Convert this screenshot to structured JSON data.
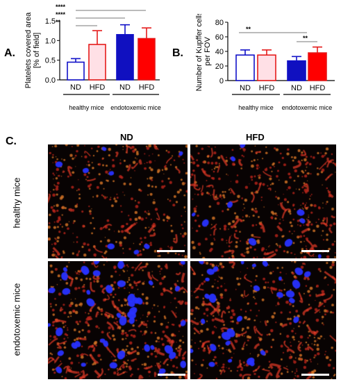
{
  "panel_labels": {
    "a": "A.",
    "b": "B.",
    "c": "C."
  },
  "colors": {
    "nd": "#1010c8",
    "hfd": "#e41a1a",
    "hfd_fill_endo": "#ff0000",
    "hfd_light": "#ffe0e6",
    "nd_endo_fill": "#1010c0",
    "micro_bg": "#080303"
  },
  "chart_data": [
    {
      "type": "bar",
      "panel": "A.",
      "ylabel": "Platelets covered area [% of field]",
      "ylim": [
        0,
        1.5
      ],
      "yticks": [
        "0.0",
        "0.5",
        "1.0",
        "1.5"
      ],
      "categories": [
        "ND",
        "HFD",
        "ND",
        "HFD"
      ],
      "groups": [
        "healthy mice",
        "endotoxemic mice"
      ],
      "values": [
        0.45,
        0.9,
        1.15,
        1.05
      ],
      "errors": [
        0.09,
        0.35,
        0.25,
        0.27
      ],
      "filled": [
        false,
        false,
        true,
        true
      ],
      "significance": [
        "****",
        "****",
        "**"
      ],
      "grid": false
    },
    {
      "type": "bar",
      "panel": "B.",
      "ylabel": "Number of Kupffer cells per FOV",
      "ylim": [
        0,
        80
      ],
      "yticks": [
        "0",
        "20",
        "40",
        "60",
        "80"
      ],
      "categories": [
        "ND",
        "HFD",
        "ND",
        "HFD"
      ],
      "groups": [
        "healthy mice",
        "endotoxemic mice"
      ],
      "values": [
        35,
        35,
        27,
        38
      ],
      "errors": [
        7,
        7,
        6,
        8
      ],
      "filled": [
        false,
        false,
        true,
        true
      ],
      "significance": [
        "**",
        "**"
      ],
      "grid": false
    }
  ],
  "micrographs": {
    "columns": [
      "ND",
      "HFD"
    ],
    "rows": [
      "healthy mice",
      "endotoxemic mice"
    ]
  }
}
